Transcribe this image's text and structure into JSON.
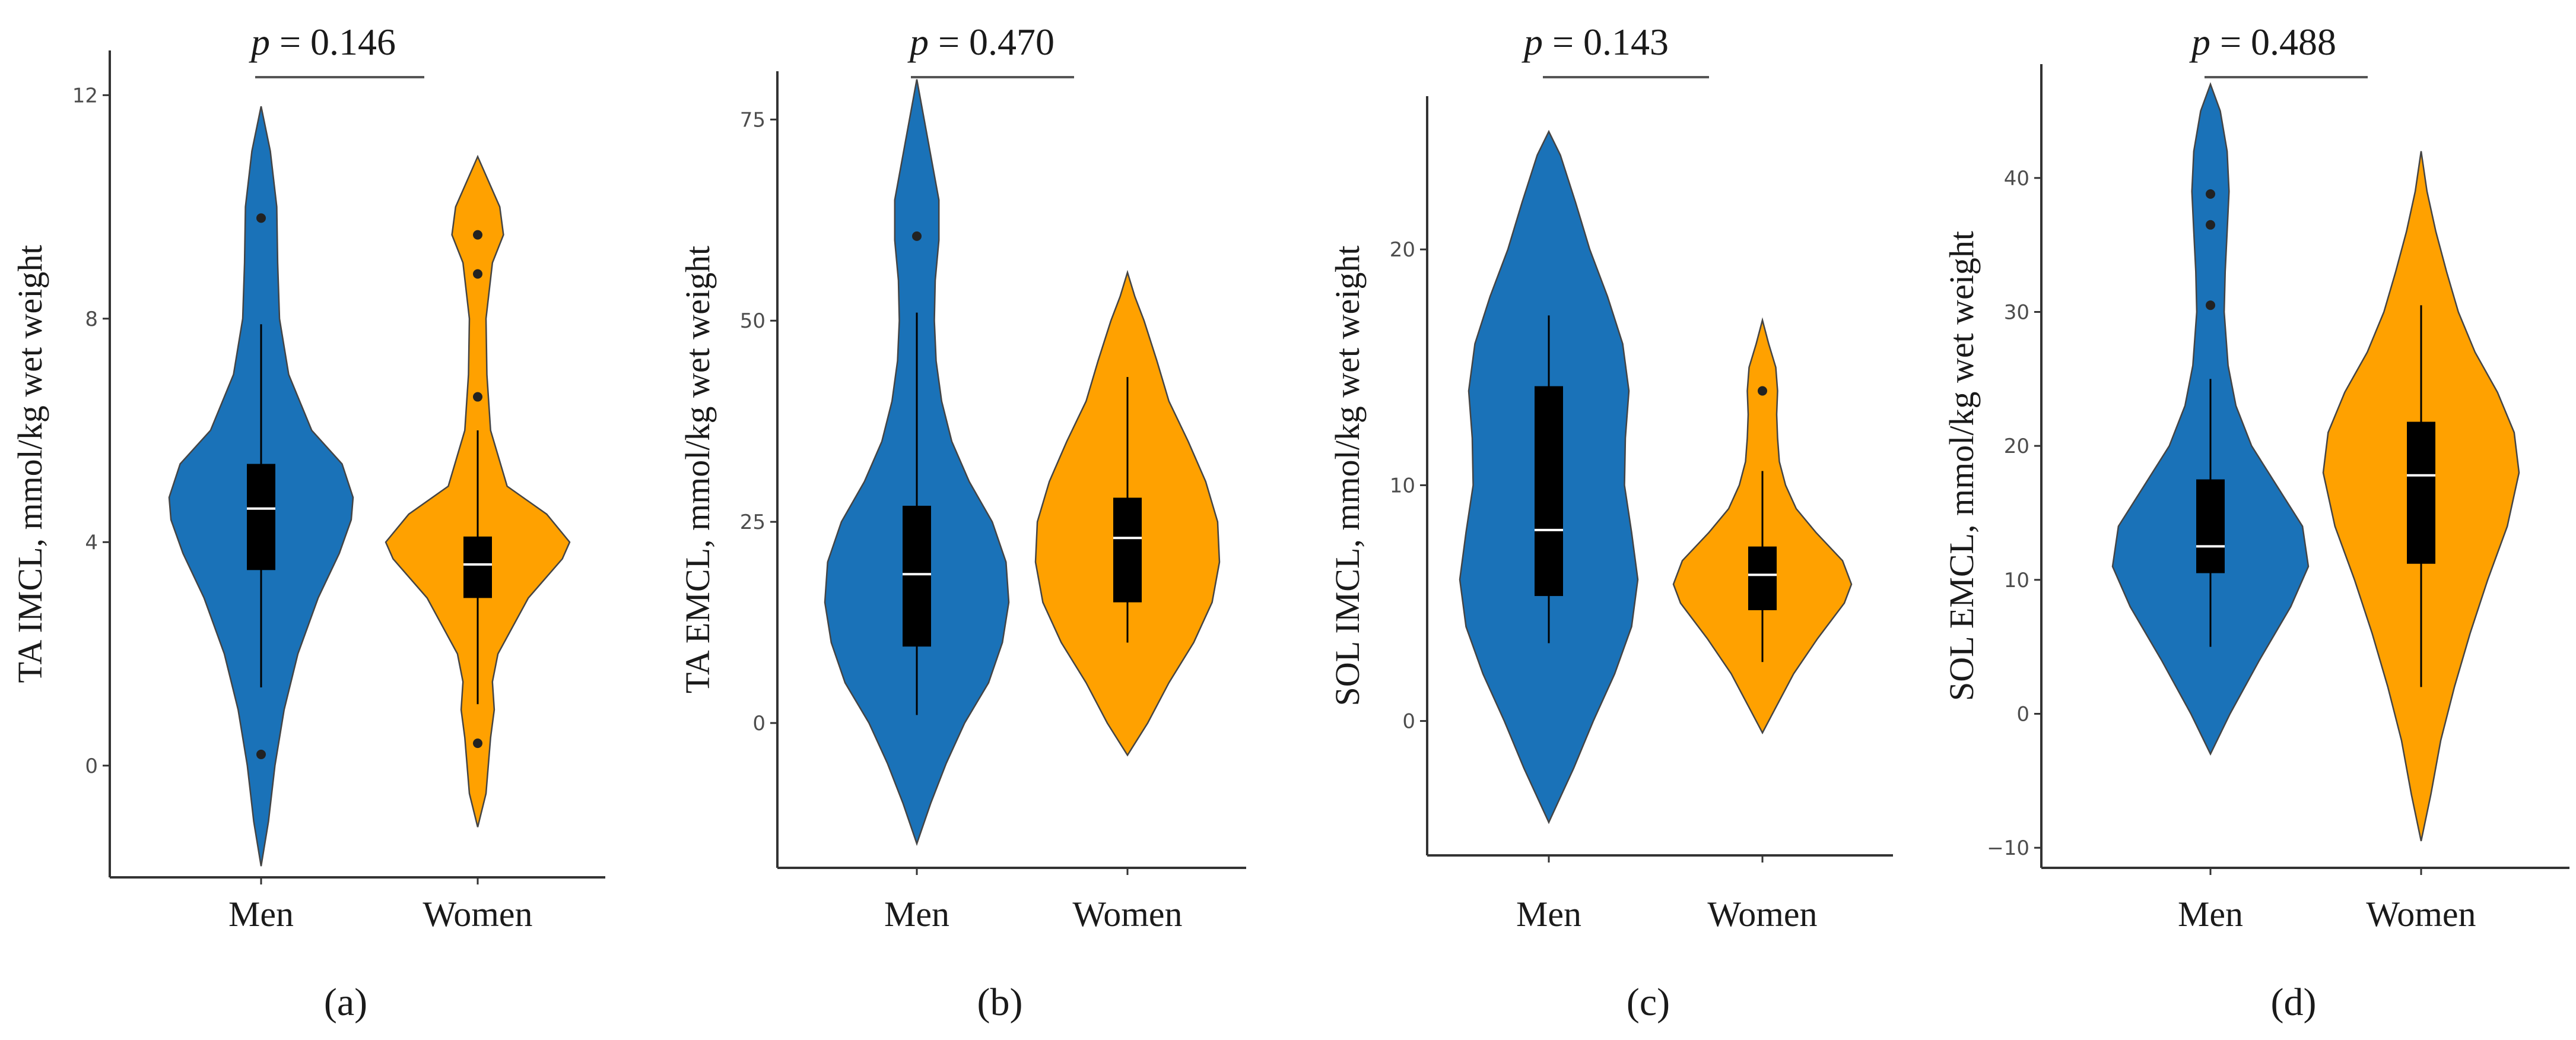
{
  "colors": {
    "men": "#1a72b8",
    "women": "#ffa100",
    "axis": "#333333",
    "box": "#000000",
    "median": "#ffffff",
    "bracket": "#555555"
  },
  "chart_data": [
    {
      "type": "violin",
      "panel_label": "(a)",
      "ylabel": "TA IMCL, mmol/kg wet weight",
      "categories": [
        "Men",
        "Women"
      ],
      "p_prefix": "p",
      "p_text": "= 0.146",
      "ylim": [
        -2,
        12.8
      ],
      "yticks": [
        "0",
        "4",
        "8",
        "12"
      ],
      "ytick_values": [
        0,
        4,
        8,
        12
      ],
      "groups": [
        {
          "name": "Men",
          "profile": [
            [
              -1.8,
              0
            ],
            [
              -1.0,
              0.08
            ],
            [
              0,
              0.15
            ],
            [
              1,
              0.25
            ],
            [
              2,
              0.4
            ],
            [
              3,
              0.62
            ],
            [
              3.8,
              0.85
            ],
            [
              4.4,
              0.98
            ],
            [
              4.8,
              1.0
            ],
            [
              5.4,
              0.88
            ],
            [
              6,
              0.55
            ],
            [
              7,
              0.3
            ],
            [
              8,
              0.2
            ],
            [
              9,
              0.18
            ],
            [
              10,
              0.17
            ],
            [
              11,
              0.1
            ],
            [
              11.8,
              0
            ]
          ],
          "whisker": [
            1.4,
            7.9
          ],
          "q1": 3.5,
          "median": 4.6,
          "q3": 5.4,
          "outliers": [
            9.8,
            0.2
          ]
        },
        {
          "name": "Women",
          "profile": [
            [
              -1.1,
              0
            ],
            [
              -0.5,
              0.09
            ],
            [
              0.5,
              0.14
            ],
            [
              1,
              0.18
            ],
            [
              1.5,
              0.16
            ],
            [
              2,
              0.22
            ],
            [
              3,
              0.55
            ],
            [
              3.7,
              0.92
            ],
            [
              4,
              1.0
            ],
            [
              4.5,
              0.75
            ],
            [
              5,
              0.32
            ],
            [
              6,
              0.14
            ],
            [
              7,
              0.1
            ],
            [
              8,
              0.09
            ],
            [
              9,
              0.16
            ],
            [
              9.5,
              0.28
            ],
            [
              10,
              0.24
            ],
            [
              10.9,
              0
            ]
          ],
          "whisker": [
            1.1,
            6.0
          ],
          "q1": 3.0,
          "median": 3.6,
          "q3": 4.1,
          "outliers": [
            9.5,
            8.8,
            6.6,
            0.4
          ]
        }
      ]
    },
    {
      "type": "violin",
      "panel_label": "(b)",
      "ylabel": "TA EMCL, mmol/kg  wet weight",
      "categories": [
        "Men",
        "Women"
      ],
      "p_prefix": "p",
      "p_text": "= 0.470",
      "ylim": [
        -18,
        81
      ],
      "yticks": [
        "0",
        "25",
        "50",
        "75"
      ],
      "ytick_values": [
        0,
        25,
        50,
        75
      ],
      "groups": [
        {
          "name": "Men",
          "profile": [
            [
              -15,
              0
            ],
            [
              -10,
              0.15
            ],
            [
              -5,
              0.32
            ],
            [
              0,
              0.52
            ],
            [
              5,
              0.78
            ],
            [
              10,
              0.93
            ],
            [
              15,
              1.0
            ],
            [
              20,
              0.97
            ],
            [
              25,
              0.82
            ],
            [
              30,
              0.57
            ],
            [
              35,
              0.38
            ],
            [
              40,
              0.27
            ],
            [
              45,
              0.21
            ],
            [
              50,
              0.19
            ],
            [
              55,
              0.2
            ],
            [
              60,
              0.24
            ],
            [
              65,
              0.24
            ],
            [
              70,
              0.16
            ],
            [
              75,
              0.08
            ],
            [
              80,
              0
            ]
          ],
          "whisker": [
            1,
            51
          ],
          "q1": 9.5,
          "median": 18.5,
          "q3": 27,
          "outliers": [
            60.5
          ]
        },
        {
          "name": "Women",
          "profile": [
            [
              -4,
              0
            ],
            [
              0,
              0.22
            ],
            [
              5,
              0.45
            ],
            [
              10,
              0.72
            ],
            [
              15,
              0.92
            ],
            [
              20,
              1.0
            ],
            [
              25,
              0.98
            ],
            [
              30,
              0.85
            ],
            [
              35,
              0.66
            ],
            [
              40,
              0.45
            ],
            [
              45,
              0.32
            ],
            [
              50,
              0.18
            ],
            [
              53,
              0.08
            ],
            [
              56,
              0
            ]
          ],
          "whisker": [
            10,
            43
          ],
          "q1": 15,
          "median": 23,
          "q3": 28,
          "outliers": []
        }
      ]
    },
    {
      "type": "violin",
      "panel_label": "(c)",
      "ylabel": "SOL IMCL, mmol/kg  wet weight",
      "categories": [
        "Men",
        "Women"
      ],
      "p_prefix": "p",
      "p_text": "= 0.143",
      "ylim": [
        -5.7,
        26.5
      ],
      "yticks": [
        "0",
        "10",
        "20"
      ],
      "ytick_values": [
        0,
        10,
        20
      ],
      "groups": [
        {
          "name": "Men",
          "profile": [
            [
              -4.3,
              0
            ],
            [
              -2,
              0.28
            ],
            [
              0,
              0.5
            ],
            [
              2,
              0.74
            ],
            [
              4,
              0.93
            ],
            [
              6,
              1.0
            ],
            [
              8,
              0.93
            ],
            [
              10,
              0.85
            ],
            [
              12,
              0.86
            ],
            [
              14,
              0.9
            ],
            [
              16,
              0.83
            ],
            [
              18,
              0.66
            ],
            [
              20,
              0.46
            ],
            [
              22,
              0.3
            ],
            [
              24,
              0.13
            ],
            [
              25,
              0
            ]
          ],
          "whisker": [
            3.3,
            17.2
          ],
          "q1": 5.3,
          "median": 8.1,
          "q3": 14.2,
          "outliers": []
        },
        {
          "name": "Women",
          "profile": [
            [
              -0.5,
              0
            ],
            [
              0.5,
              0.14
            ],
            [
              2,
              0.35
            ],
            [
              3.5,
              0.62
            ],
            [
              5,
              0.92
            ],
            [
              5.8,
              1.0
            ],
            [
              6.8,
              0.9
            ],
            [
              8,
              0.6
            ],
            [
              9,
              0.38
            ],
            [
              10,
              0.26
            ],
            [
              11,
              0.19
            ],
            [
              12,
              0.17
            ],
            [
              13,
              0.16
            ],
            [
              14,
              0.17
            ],
            [
              15,
              0.15
            ],
            [
              16,
              0.07
            ],
            [
              17,
              0
            ]
          ],
          "whisker": [
            2.5,
            10.6
          ],
          "q1": 4.7,
          "median": 6.2,
          "q3": 7.4,
          "outliers": [
            14.0
          ]
        }
      ]
    },
    {
      "type": "violin",
      "panel_label": "(d)",
      "ylabel": "SOL EMCL, mmol/kg wet weight",
      "categories": [
        "Men",
        "Women"
      ],
      "p_prefix": "p",
      "p_text": "= 0.488",
      "ylim": [
        -11.5,
        48.5
      ],
      "yticks": [
        "−10",
        "0",
        "10",
        "20",
        "30",
        "40"
      ],
      "ytick_values": [
        -10,
        0,
        10,
        20,
        30,
        40
      ],
      "groups": [
        {
          "name": "Men",
          "profile": [
            [
              -3,
              0
            ],
            [
              0,
              0.2
            ],
            [
              4,
              0.5
            ],
            [
              8,
              0.82
            ],
            [
              11,
              1.0
            ],
            [
              14,
              0.94
            ],
            [
              17,
              0.68
            ],
            [
              20,
              0.42
            ],
            [
              23,
              0.26
            ],
            [
              26,
              0.18
            ],
            [
              30,
              0.14
            ],
            [
              33,
              0.15
            ],
            [
              36,
              0.17
            ],
            [
              39,
              0.19
            ],
            [
              42,
              0.17
            ],
            [
              45,
              0.1
            ],
            [
              47,
              0
            ]
          ],
          "whisker": [
            5,
            25
          ],
          "q1": 10.5,
          "median": 12.5,
          "q3": 17.5,
          "outliers": [
            38.8,
            36.5,
            30.5
          ]
        },
        {
          "name": "Women",
          "profile": [
            [
              -9.5,
              0
            ],
            [
              -6,
              0.1
            ],
            [
              -2,
              0.2
            ],
            [
              2,
              0.34
            ],
            [
              6,
              0.5
            ],
            [
              10,
              0.68
            ],
            [
              14,
              0.88
            ],
            [
              18,
              1.0
            ],
            [
              21,
              0.95
            ],
            [
              24,
              0.78
            ],
            [
              27,
              0.55
            ],
            [
              30,
              0.38
            ],
            [
              33,
              0.26
            ],
            [
              36,
              0.15
            ],
            [
              39,
              0.06
            ],
            [
              42,
              0
            ]
          ],
          "whisker": [
            2,
            30.5
          ],
          "q1": 11.2,
          "median": 17.8,
          "q3": 21.8,
          "outliers": []
        }
      ]
    }
  ]
}
